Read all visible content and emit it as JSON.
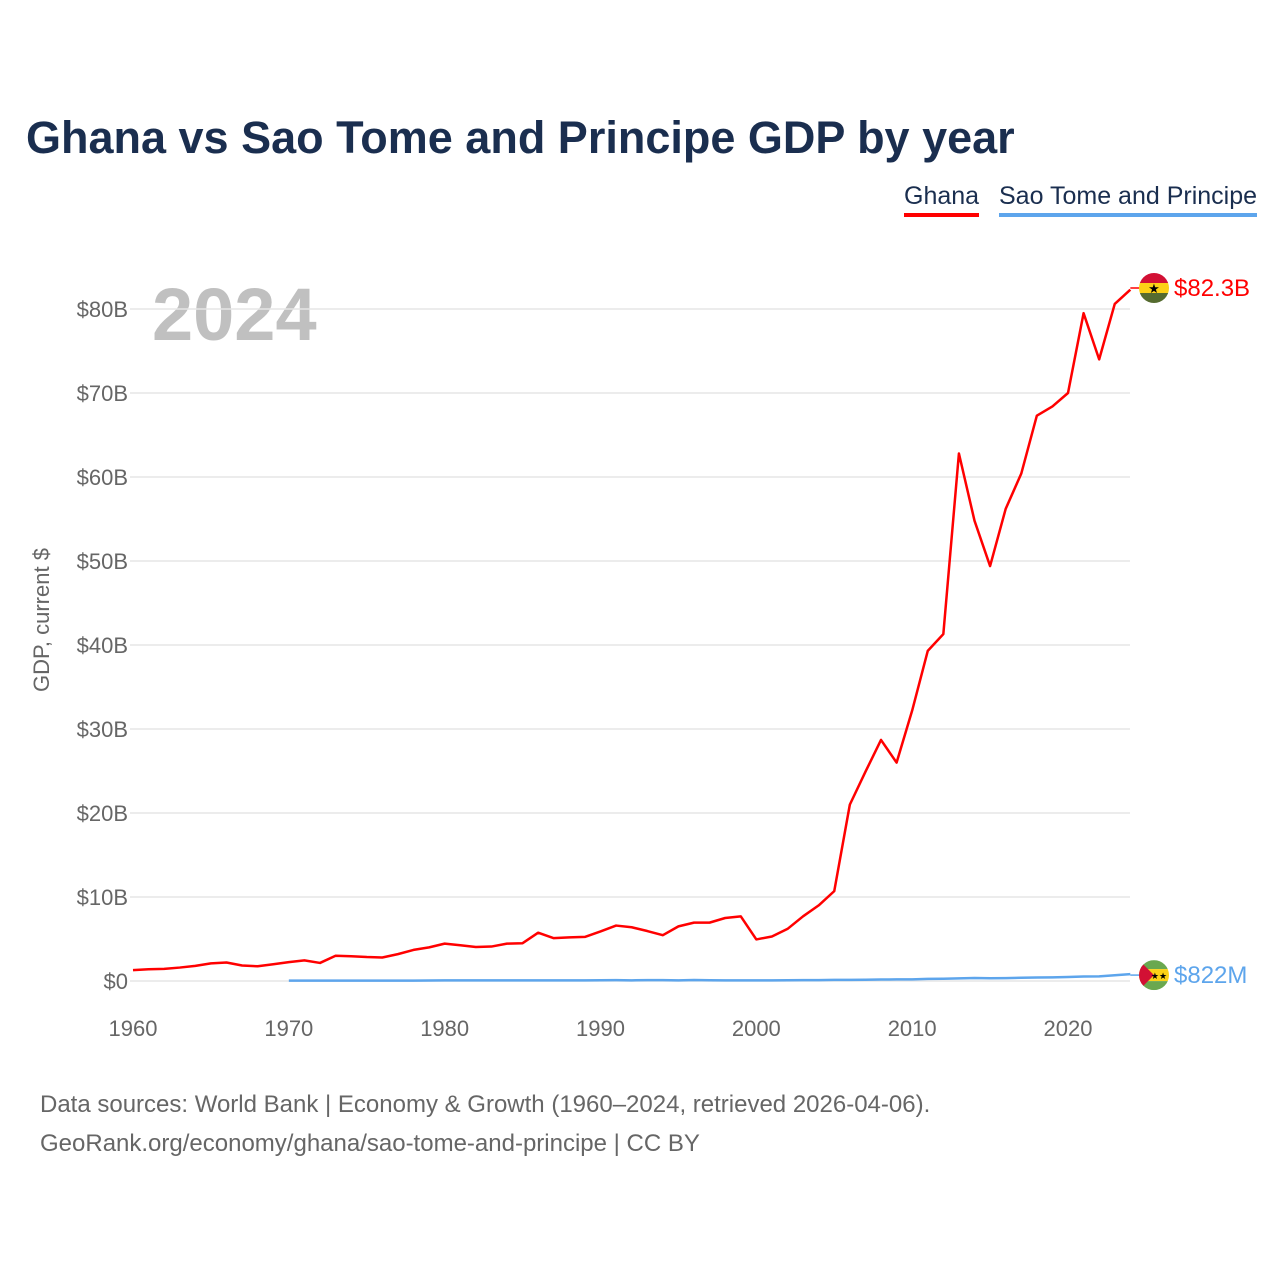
{
  "chart_data": {
    "type": "line",
    "title": "Ghana vs Sao Tome and Principe GDP by year",
    "ylabel": "GDP, current $",
    "xlabel": "",
    "year_label": "2024",
    "xlim": [
      1960,
      2024
    ],
    "ylim": [
      0,
      82.3
    ],
    "x_ticks": [
      1960,
      1970,
      1980,
      1990,
      2000,
      2010,
      2020
    ],
    "y_ticks": [
      0,
      10,
      20,
      30,
      40,
      50,
      60,
      70,
      80
    ],
    "y_tick_labels": [
      "$0",
      "$10B",
      "$20B",
      "$30B",
      "$40B",
      "$50B",
      "$60B",
      "$70B",
      "$80B"
    ],
    "grid": true,
    "legend_position": "top-right",
    "series": [
      {
        "name": "Ghana",
        "color": "#ff0000",
        "end_label": "$82.3B",
        "start_year": 1960,
        "values": [
          1.3,
          1.4,
          1.45,
          1.6,
          1.8,
          2.1,
          2.2,
          1.85,
          1.75,
          2.0,
          2.25,
          2.45,
          2.15,
          3.0,
          2.95,
          2.85,
          2.8,
          3.2,
          3.7,
          4.0,
          4.45,
          4.25,
          4.05,
          4.1,
          4.45,
          4.5,
          5.75,
          5.1,
          5.2,
          5.25,
          5.9,
          6.6,
          6.4,
          5.95,
          5.45,
          6.5,
          6.95,
          6.95,
          7.5,
          7.7,
          4.95,
          5.3,
          6.2,
          7.7,
          9.0,
          10.7,
          21.0,
          24.9,
          28.7,
          26.0,
          32.2,
          39.3,
          41.3,
          62.8,
          54.8,
          49.4,
          56.2,
          60.4,
          67.3,
          68.4,
          70.0,
          79.5,
          74.0,
          80.6,
          82.3
        ]
      },
      {
        "name": "Sao Tome and Principe",
        "color": "#5da5ec",
        "end_label": "$822M",
        "start_year": 1970,
        "values": [
          0.04,
          0.04,
          0.04,
          0.05,
          0.05,
          0.05,
          0.05,
          0.05,
          0.05,
          0.06,
          0.07,
          0.07,
          0.07,
          0.07,
          0.07,
          0.07,
          0.08,
          0.08,
          0.08,
          0.08,
          0.09,
          0.1,
          0.08,
          0.1,
          0.1,
          0.08,
          0.12,
          0.09,
          0.08,
          0.08,
          0.08,
          0.08,
          0.09,
          0.1,
          0.11,
          0.13,
          0.14,
          0.15,
          0.18,
          0.19,
          0.2,
          0.25,
          0.27,
          0.31,
          0.35,
          0.32,
          0.34,
          0.38,
          0.42,
          0.43,
          0.47,
          0.53,
          0.55,
          0.68,
          0.822
        ]
      }
    ]
  },
  "legend": [
    "Ghana",
    "Sao Tome and Principe"
  ],
  "source": {
    "line1": "Data sources: World Bank | Economy & Growth (1960–2024, retrieved 2026-04-06).",
    "line2": "GeoRank.org/economy/ghana/sao-tome-and-principe | CC BY"
  },
  "icons": {
    "ghana": "ghana-flag-icon",
    "stp": "sao-tome-flag-icon"
  }
}
